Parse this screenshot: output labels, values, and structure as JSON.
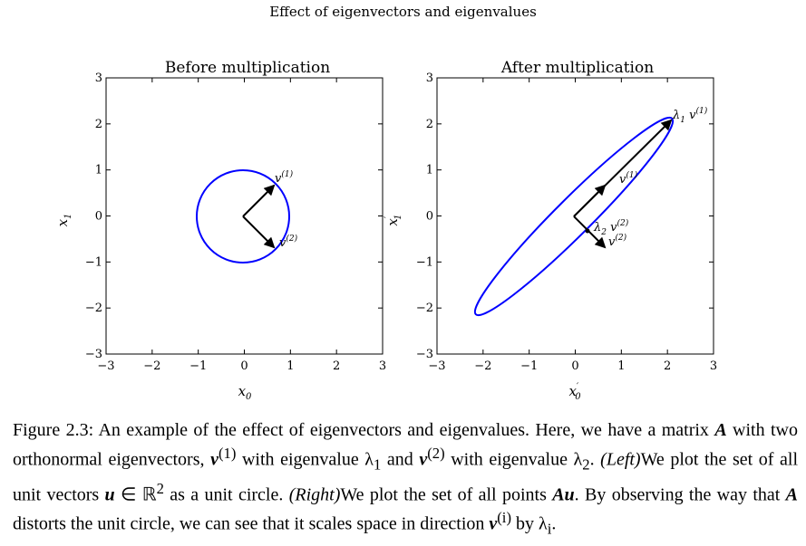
{
  "figure": {
    "suptitle": "Effect of eigenvectors and eigenvalues",
    "left_panel_title": "Before multiplication",
    "right_panel_title": "After multiplication"
  },
  "chart_data": [
    {
      "type": "line",
      "title": "Before multiplication",
      "xlabel": "x0",
      "ylabel": "x1",
      "xlim": [
        -3,
        3
      ],
      "ylim": [
        -3,
        3
      ],
      "xticks": [
        "−3",
        "−2",
        "−1",
        "0",
        "1",
        "2",
        "3"
      ],
      "yticks": [
        "3",
        "2",
        "1",
        "0",
        "−1",
        "−2",
        "−3"
      ],
      "curve": {
        "shape": "unit circle",
        "color": "#0000ff",
        "center": [
          0,
          0
        ],
        "radius": 1
      },
      "vectors": [
        {
          "label": "v(1)",
          "from": [
            0,
            0
          ],
          "to": [
            0.71,
            0.71
          ]
        },
        {
          "label": "v(2)",
          "from": [
            0,
            0
          ],
          "to": [
            0.71,
            -0.71
          ]
        }
      ]
    },
    {
      "type": "line",
      "title": "After multiplication",
      "xlabel": "x0'",
      "ylabel": "x1'",
      "xlim": [
        -3,
        3
      ],
      "ylim": [
        -3,
        3
      ],
      "xticks": [
        "−3",
        "−2",
        "−1",
        "0",
        "1",
        "2",
        "3"
      ],
      "yticks": [
        "3",
        "2",
        "1",
        "0",
        "−1",
        "−2",
        "−3"
      ],
      "curve": {
        "shape": "ellipse",
        "color": "#0000ff",
        "center": [
          0,
          0
        ],
        "axis1_direction": [
          0.71,
          0.71
        ],
        "axis1_length": 3.0,
        "axis2_direction": [
          0.71,
          -0.71
        ],
        "axis2_length": 0.4
      },
      "vectors": [
        {
          "label": "λ1 v(1)",
          "from": [
            0,
            0
          ],
          "to": [
            2.12,
            2.12
          ]
        },
        {
          "label": "v(1)",
          "from": [
            0,
            0
          ],
          "to": [
            0.71,
            0.71
          ]
        },
        {
          "label": "λ2 v(2)",
          "from": [
            0,
            0
          ],
          "to": [
            0.28,
            -0.28
          ]
        },
        {
          "label": "v(2)",
          "from": [
            0,
            0
          ],
          "to": [
            0.71,
            -0.71
          ]
        }
      ]
    }
  ],
  "caption": {
    "p1": "Figure 2.3: An example of the effect of eigenvectors and eigenvalues. Here, we have a matrix ",
    "A": "A",
    "p2": " with two orthonormal eigenvectors, ",
    "v1": "v",
    "v1sup": "(1)",
    "p3": " with eigenvalue λ",
    "l1sub": "1",
    "p4": " and ",
    "v2": "v",
    "v2sup": "(2)",
    "p5": " with eigenvalue λ",
    "l2sub": "2",
    "p6": ". ",
    "left": "(Left)",
    "p7": "We plot the set of all unit vectors ",
    "u": "u",
    "p8": " ∈ ℝ",
    "r2sup": "2",
    "p9": " as a unit circle. ",
    "right": "(Right)",
    "p10": "We plot the set of all points ",
    "Au": "Au",
    "p11": ". By observing the way that ",
    "A2": "A",
    "p12": " distorts the unit circle, we can see that it scales space in direction ",
    "vi": "v",
    "visup": "(i)",
    "p13": " by λ",
    "lisub": "i",
    "p14": "."
  }
}
